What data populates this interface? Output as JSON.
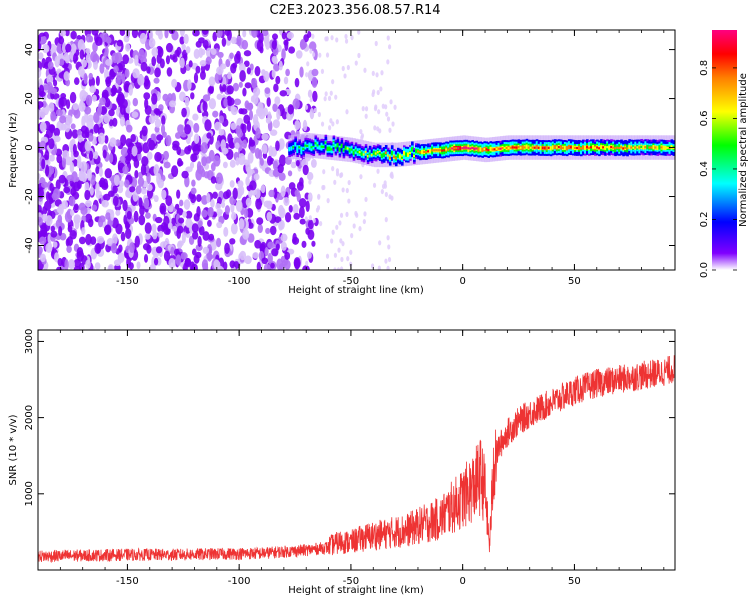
{
  "title": "C2E3.2023.356.08.57.R14",
  "chart_data": [
    {
      "type": "heatmap",
      "title": "C2E3.2023.356.08.57.R14",
      "xlabel": "Height of straight line (km)",
      "ylabel": "Frequency (Hz)",
      "xlim": [
        -190,
        95
      ],
      "ylim": [
        -50,
        48
      ],
      "x_ticks": [
        "-150",
        "-100",
        "-50",
        "0",
        "50"
      ],
      "y_ticks": [
        "40",
        "20",
        "0",
        "-20",
        "-40"
      ],
      "colorbar": {
        "label": "Normalized spectral amplitude",
        "range": [
          0.0,
          0.95
        ],
        "ticks": [
          "0.0",
          "0.2",
          "0.4",
          "0.6",
          "0.8"
        ],
        "colors": [
          "#ffffff",
          "#8000ff",
          "#0000ff",
          "#00ffff",
          "#00ff00",
          "#ffff00",
          "#ff8000",
          "#ff0000",
          "#ff0080"
        ]
      },
      "signal_track": {
        "x": [
          -78,
          -70,
          -60,
          -50,
          -40,
          -30,
          -20,
          -10,
          0,
          10,
          20,
          30,
          40,
          50,
          60,
          70,
          80,
          90
        ],
        "frequency": [
          0,
          1,
          0,
          -1,
          -3,
          -3,
          -2,
          -1,
          0,
          -1,
          0,
          0,
          0,
          0,
          0,
          0,
          0,
          0
        ],
        "peak_amplitude": [
          0.3,
          0.35,
          0.4,
          0.45,
          0.5,
          0.55,
          0.6,
          0.7,
          0.9,
          0.75,
          0.7,
          0.75,
          0.7,
          0.7,
          0.65,
          0.65,
          0.6,
          0.6
        ]
      },
      "grid": false
    },
    {
      "type": "line",
      "xlabel": "Height of straight line (km)",
      "ylabel": "SNR (10 * v/v)",
      "xlim": [
        -190,
        95
      ],
      "ylim": [
        0,
        3150
      ],
      "x_ticks": [
        "-150",
        "-100",
        "-50",
        "0",
        "50"
      ],
      "y_ticks": [
        "3000",
        "2000",
        "1000"
      ],
      "color": "#ee3333",
      "series": [
        {
          "x": [
            -190,
            -170,
            -150,
            -130,
            -110,
            -90,
            -80,
            -70,
            -60,
            -55,
            -50,
            -45,
            -40,
            -35,
            -30,
            -25,
            -20,
            -15,
            -10,
            -5,
            0,
            5,
            8,
            10,
            12,
            14,
            16,
            20,
            25,
            30,
            40,
            50,
            60,
            70,
            80,
            90,
            95
          ],
          "values": [
            180,
            190,
            200,
            200,
            210,
            220,
            240,
            260,
            300,
            350,
            350,
            400,
            430,
            450,
            480,
            500,
            550,
            600,
            650,
            780,
            900,
            1050,
            1180,
            1000,
            300,
            1400,
            1600,
            1800,
            1950,
            2050,
            2200,
            2350,
            2450,
            2500,
            2550,
            2600,
            2650
          ]
        }
      ],
      "grid": false
    }
  ]
}
